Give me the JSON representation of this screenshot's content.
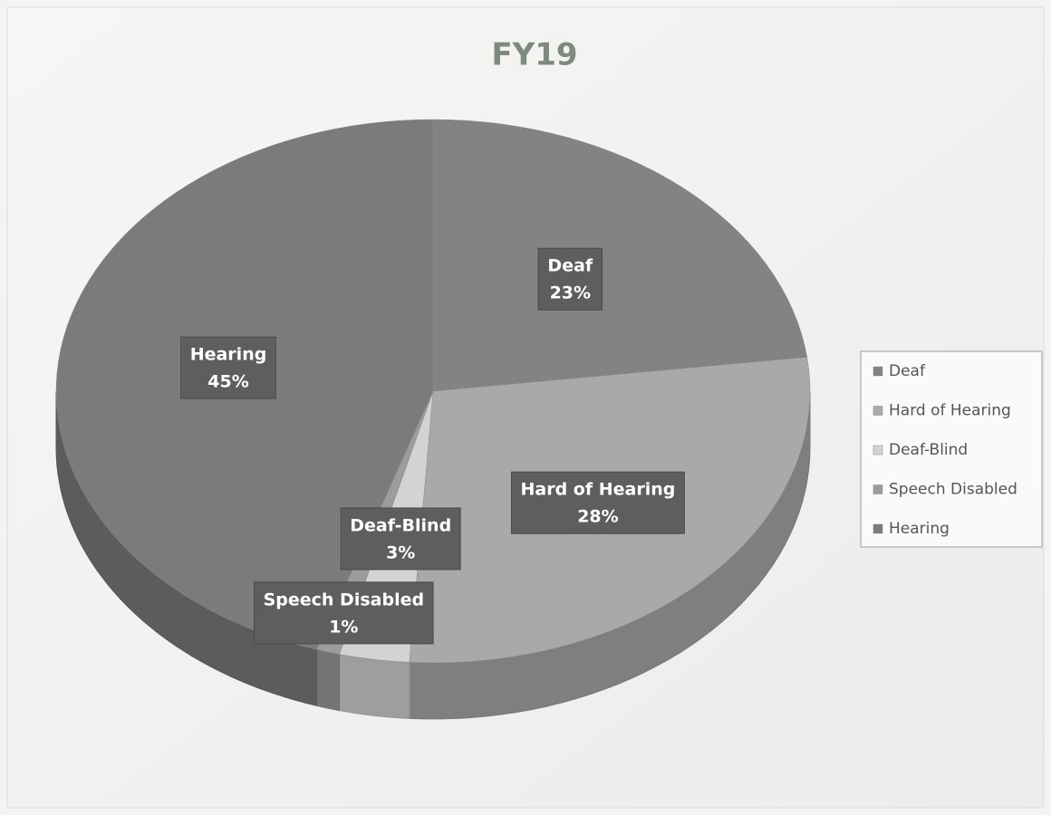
{
  "chart_data": {
    "type": "pie",
    "title": "FY19",
    "categories": [
      "Deaf",
      "Hard of Hearing",
      "Deaf-Blind",
      "Speech Disabled",
      "Hearing"
    ],
    "values": [
      23,
      28,
      3,
      1,
      45
    ],
    "value_labels": [
      "23%",
      "28%",
      "3%",
      "1%",
      "45%"
    ],
    "colors": [
      "#838383",
      "#a9a9a9",
      "#d3d3d3",
      "#9c9c9c",
      "#7b7b7b"
    ],
    "legend": "right"
  }
}
